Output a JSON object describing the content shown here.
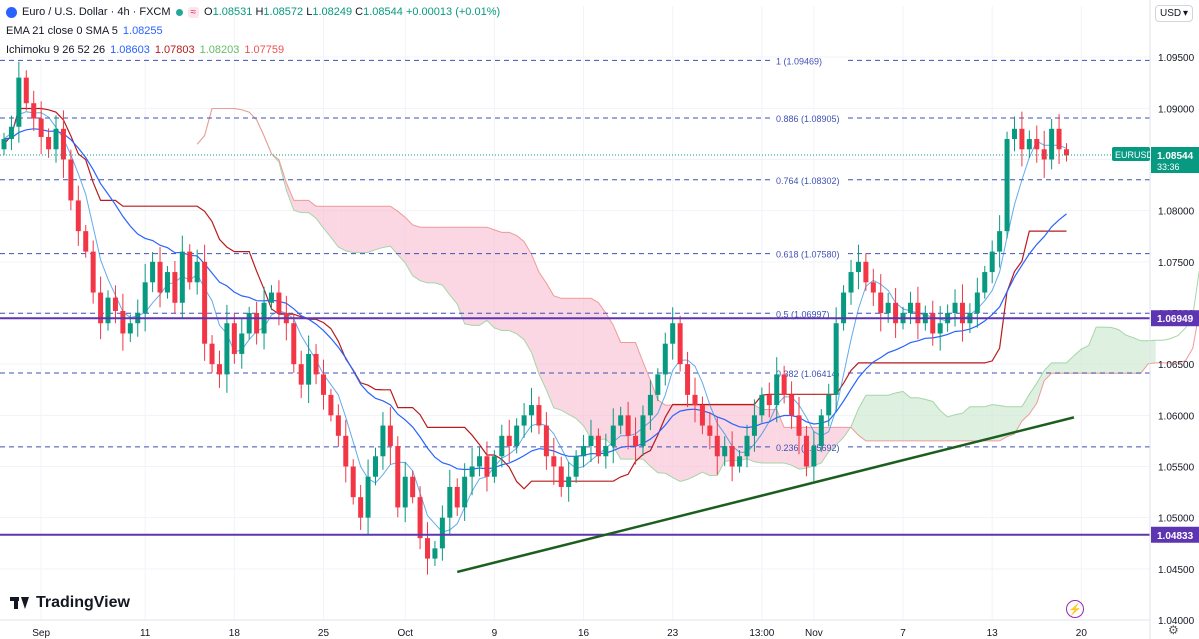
{
  "legend": {
    "symbol": "Euro / U.S. Dollar · 4h · FXCM",
    "open_label": "O",
    "open": "1.08531",
    "high_label": "H",
    "high": "1.08572",
    "low_label": "L",
    "low": "1.08249",
    "close_label": "C",
    "close": "1.08544",
    "change": "+0.00013 (+0.01%)",
    "ema_label": "EMA 21 close 0 SMA 5",
    "ema_value": "1.08255",
    "ichi_label": "Ichimoku 9 26 52 26",
    "ichi_v1": "1.08603",
    "ichi_v2": "1.07803",
    "ichi_v3": "1.08203",
    "ichi_v4": "1.07759"
  },
  "currency_button": "USD",
  "watermark": "TradingView",
  "colors": {
    "up": "#089981",
    "down": "#f23645",
    "ema": "#2962ff",
    "kijun": "#b71c1c",
    "trend": "#1b5e20",
    "hline": "#5e35b1",
    "fib": "#3f51b5",
    "cloud_bear": "#f8bbd0",
    "cloud_bull": "#c8e6c9"
  },
  "chart_data": {
    "type": "candlestick",
    "title": "Euro / U.S. Dollar · 4h · FXCM",
    "xlabel": "",
    "ylabel": "",
    "ylim": [
      1.04,
      1.1
    ],
    "y_ticks": [
      "1.09500",
      "1.09000",
      "1.08500",
      "1.08000",
      "1.07500",
      "1.07000",
      "1.06500",
      "1.06000",
      "1.05500",
      "1.05000",
      "1.04500",
      "1.04000"
    ],
    "y_tick_values": [
      1.095,
      1.09,
      1.085,
      1.08,
      1.075,
      1.07,
      1.065,
      1.06,
      1.055,
      1.05,
      1.045,
      1.04
    ],
    "x_ticks": [
      "Sep",
      "11",
      "18",
      "25",
      "Oct",
      "9",
      "16",
      "23",
      "13:00",
      "Nov",
      "7",
      "13",
      "20"
    ],
    "x_tick_index": [
      5,
      19,
      31,
      43,
      54,
      66,
      78,
      90,
      102,
      109,
      121,
      133,
      145
    ],
    "fib_levels": [
      {
        "label": "1 (1.09469)",
        "value": 1.09469
      },
      {
        "label": "0.886 (1.08905)",
        "value": 1.08905
      },
      {
        "label": "0.764 (1.08302)",
        "value": 1.08302
      },
      {
        "label": "0.618 (1.07580)",
        "value": 1.0758
      },
      {
        "label": "0.5 (1.06997)",
        "value": 1.06997
      },
      {
        "label": "0.382 (1.06414)",
        "value": 1.06414
      },
      {
        "label": "0.236 (1.05692)",
        "value": 1.05692
      }
    ],
    "horizontal_lines": [
      {
        "label": "1.06949",
        "value": 1.06949
      },
      {
        "label": "1.04833",
        "value": 1.04833
      }
    ],
    "price_label": {
      "symbol": "EURUSD",
      "value": "1.08544",
      "countdown": "33:36",
      "price": 1.08544
    },
    "trendline": {
      "from": {
        "index": 61,
        "price": 1.0447
      },
      "to": {
        "index": 144,
        "price": 1.0598
      }
    },
    "closes": [
      1.087,
      1.0882,
      1.093,
      1.0905,
      1.089,
      1.0872,
      1.086,
      1.088,
      1.085,
      1.081,
      1.078,
      1.076,
      1.072,
      1.069,
      1.0715,
      1.0702,
      1.068,
      1.069,
      1.07,
      1.073,
      1.075,
      1.072,
      1.074,
      1.071,
      1.076,
      1.073,
      1.075,
      1.067,
      1.065,
      1.064,
      1.069,
      1.066,
      1.068,
      1.07,
      1.068,
      1.071,
      1.072,
      1.07,
      1.069,
      1.065,
      1.063,
      1.066,
      1.064,
      1.062,
      1.06,
      1.058,
      1.055,
      1.052,
      1.05,
      1.054,
      1.056,
      1.059,
      1.057,
      1.051,
      1.054,
      1.052,
      1.048,
      1.046,
      1.047,
      1.05,
      1.053,
      1.051,
      1.054,
      1.055,
      1.056,
      1.054,
      1.056,
      1.058,
      1.057,
      1.059,
      1.06,
      1.061,
      1.059,
      1.056,
      1.055,
      1.053,
      1.054,
      1.056,
      1.057,
      1.058,
      1.056,
      1.057,
      1.059,
      1.06,
      1.058,
      1.057,
      1.06,
      1.062,
      1.064,
      1.067,
      1.069,
      1.065,
      1.062,
      1.061,
      1.059,
      1.058,
      1.056,
      1.057,
      1.055,
      1.056,
      1.058,
      1.06,
      1.062,
      1.061,
      1.064,
      1.062,
      1.06,
      1.058,
      1.055,
      1.057,
      1.06,
      1.062,
      1.069,
      1.072,
      1.074,
      1.075,
      1.073,
      1.072,
      1.07,
      1.071,
      1.069,
      1.07,
      1.071,
      1.069,
      1.07,
      1.068,
      1.069,
      1.07,
      1.071,
      1.069,
      1.07,
      1.072,
      1.074,
      1.076,
      1.078,
      1.087,
      1.088,
      1.086,
      1.087,
      1.086,
      1.085,
      1.088,
      1.086,
      1.0854
    ]
  }
}
